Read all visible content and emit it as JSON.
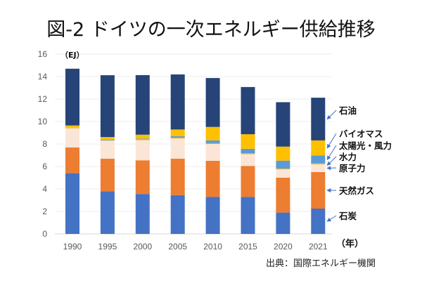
{
  "title": "図-2 ドイツの一次エネルギー供給推移",
  "source": "出典：国際エネルギー機関",
  "colors": {
    "coal": "#4472C4",
    "gas": "#ED7D31",
    "nuclear": "#FBE5D6",
    "hydro": "#E2B12A",
    "solar_wind": "#5B9BD5",
    "biomass": "#FFC000",
    "oil": "#264478",
    "grid": "#EDEDED",
    "arrow": "#4472C4"
  },
  "chart_data": {
    "type": "bar",
    "stacked": true,
    "title": "図-2 ドイツの一次エネルギー供給推移",
    "xlabel": "（年）",
    "ylabel": "（EJ）",
    "ylim": [
      0,
      16
    ],
    "yticks": [
      0,
      2,
      4,
      6,
      8,
      10,
      12,
      14,
      16
    ],
    "grid": true,
    "legend_placement": "right (arrow labels)",
    "categories": [
      "1990",
      "1995",
      "2000",
      "2005",
      "2010",
      "2015",
      "2020",
      "2021"
    ],
    "series": [
      {
        "key": "coal",
        "name": "石炭",
        "values": [
          5.4,
          3.8,
          3.55,
          3.45,
          3.3,
          3.3,
          1.9,
          2.25
        ]
      },
      {
        "key": "gas",
        "name": "天然ガス",
        "values": [
          2.3,
          2.9,
          3.0,
          3.25,
          3.2,
          2.75,
          3.1,
          3.25
        ]
      },
      {
        "key": "nuclear",
        "name": "原子力",
        "values": [
          1.7,
          1.6,
          1.8,
          1.8,
          1.5,
          1.05,
          0.75,
          0.7
        ]
      },
      {
        "key": "hydro",
        "name": "水力",
        "values": [
          0.05,
          0.05,
          0.08,
          0.07,
          0.07,
          0.07,
          0.07,
          0.07
        ]
      },
      {
        "key": "solar_wind",
        "name": "太陽光・風力",
        "values": [
          0.0,
          0.02,
          0.05,
          0.12,
          0.25,
          0.4,
          0.7,
          0.7
        ]
      },
      {
        "key": "biomass",
        "name": "バイオマス",
        "values": [
          0.2,
          0.25,
          0.35,
          0.6,
          1.2,
          1.3,
          1.25,
          1.35
        ]
      },
      {
        "key": "oil",
        "name": "石油",
        "values": [
          5.05,
          5.5,
          5.3,
          4.9,
          4.35,
          4.2,
          3.95,
          3.8
        ]
      }
    ]
  }
}
